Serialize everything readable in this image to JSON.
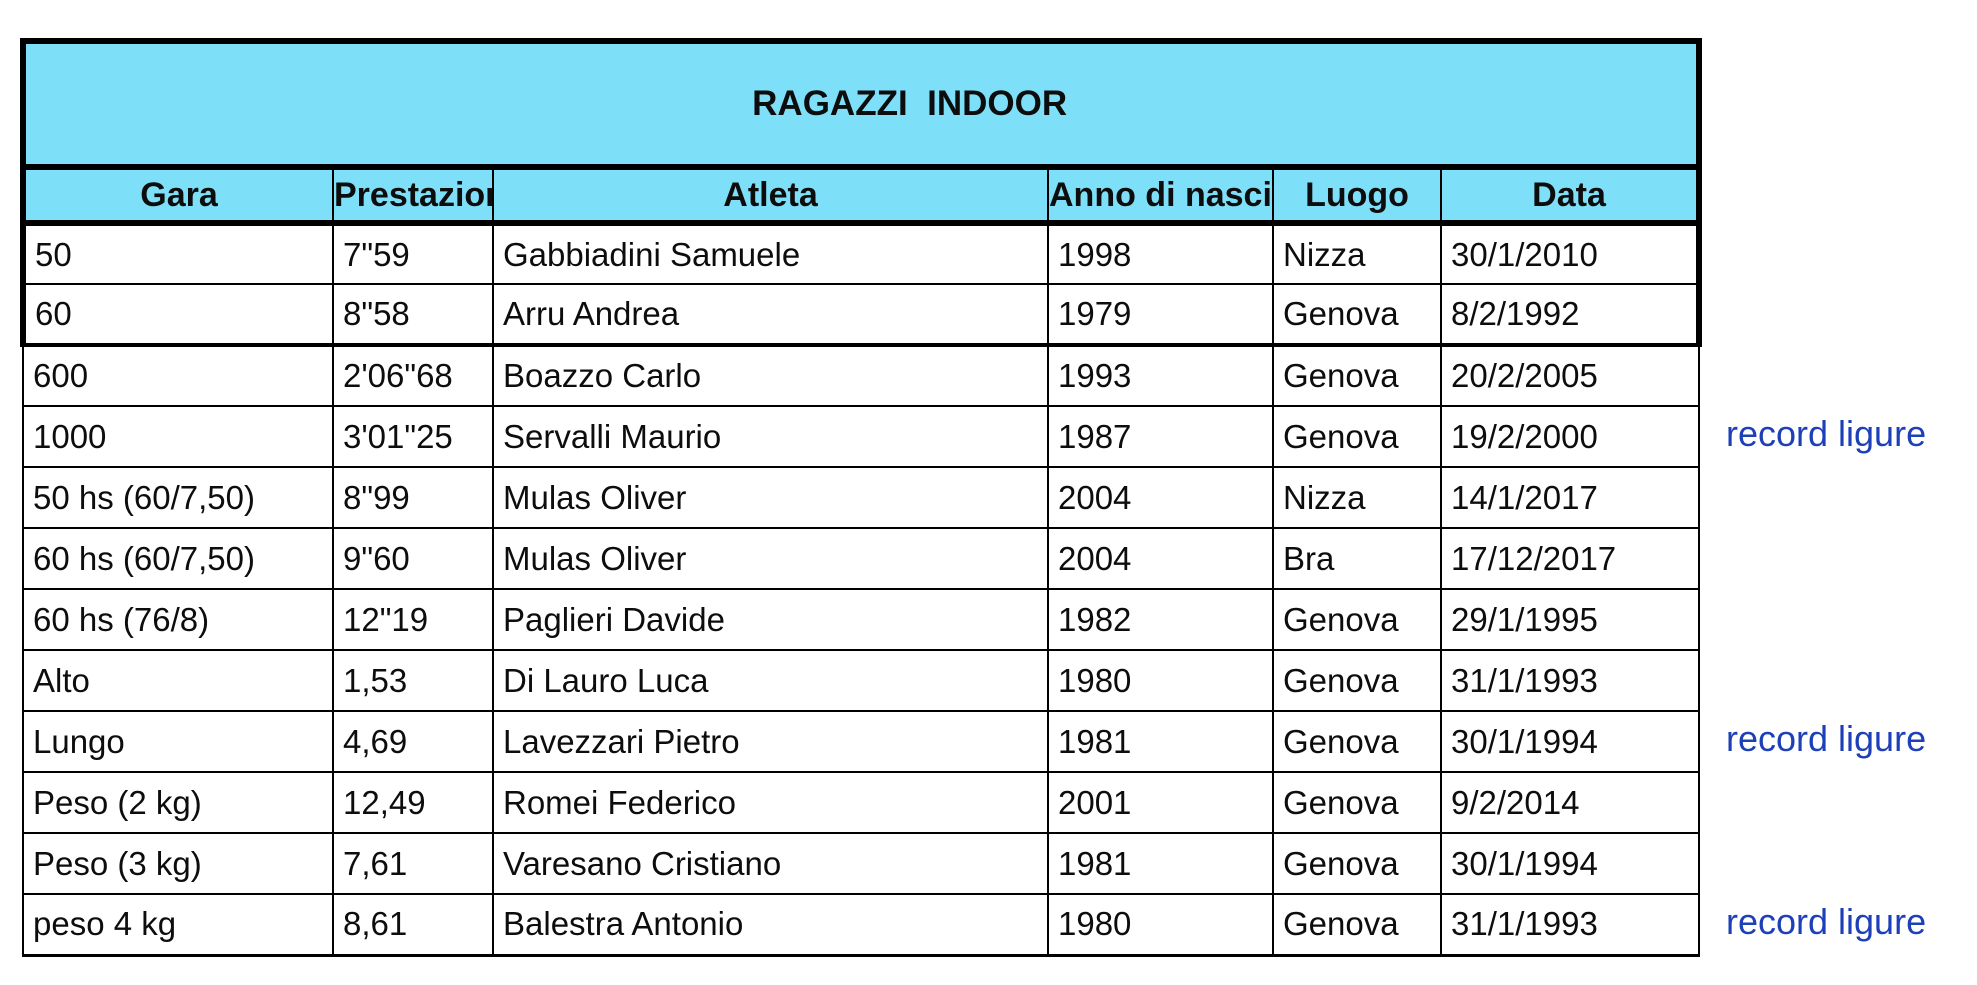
{
  "table": {
    "title": "RAGAZZI  INDOOR",
    "columns": {
      "gara": "Gara",
      "prestazione": "Prestazione",
      "atleta": "Atleta",
      "anno": "Anno di nascita",
      "luogo": "Luogo",
      "data": "Data"
    },
    "rows": [
      {
        "gara": "50",
        "prestazione": "7\"59",
        "atleta": "Gabbiadini Samuele",
        "anno": "1998",
        "luogo": "Nizza",
        "data": "30/1/2010"
      },
      {
        "gara": "60",
        "prestazione": "8\"58",
        "atleta": "Arru Andrea",
        "anno": "1979",
        "luogo": "Genova",
        "data": "8/2/1992"
      },
      {
        "gara": "600",
        "prestazione": "2'06\"68",
        "atleta": "Boazzo Carlo",
        "anno": "1993",
        "luogo": "Genova",
        "data": "20/2/2005"
      },
      {
        "gara": "1000",
        "prestazione": "3'01\"25",
        "atleta": "Servalli Maurio",
        "anno": "1987",
        "luogo": "Genova",
        "data": "19/2/2000"
      },
      {
        "gara": "50 hs (60/7,50)",
        "prestazione": "8\"99",
        "atleta": "Mulas Oliver",
        "anno": "2004",
        "luogo": "Nizza",
        "data": "14/1/2017"
      },
      {
        "gara": "60 hs (60/7,50)",
        "prestazione": "9\"60",
        "atleta": "Mulas Oliver",
        "anno": "2004",
        "luogo": "Bra",
        "data": "17/12/2017"
      },
      {
        "gara": "60 hs (76/8)",
        "prestazione": "12\"19",
        "atleta": "Paglieri Davide",
        "anno": "1982",
        "luogo": "Genova",
        "data": "29/1/1995"
      },
      {
        "gara": "Alto",
        "prestazione": "1,53",
        "atleta": "Di Lauro Luca",
        "anno": "1980",
        "luogo": "Genova",
        "data": "31/1/1993"
      },
      {
        "gara": "Lungo",
        "prestazione": "4,69",
        "atleta": "Lavezzari Pietro",
        "anno": "1981",
        "luogo": "Genova",
        "data": "30/1/1994"
      },
      {
        "gara": "Peso (2 kg)",
        "prestazione": "12,49",
        "atleta": "Romei Federico",
        "anno": "2001",
        "luogo": "Genova",
        "data": "9/2/2014"
      },
      {
        "gara": "Peso (3 kg)",
        "prestazione": "7,61",
        "atleta": "Varesano Cristiano",
        "anno": "1981",
        "luogo": "Genova",
        "data": "30/1/1994"
      },
      {
        "gara": "peso 4 kg",
        "prestazione": "8,61",
        "atleta": "Balestra Antonio",
        "anno": "1980",
        "luogo": "Genova",
        "data": "31/1/1993"
      }
    ],
    "annotations": [
      {
        "row": 4,
        "text": "record ligure"
      },
      {
        "row": 9,
        "text": "record ligure"
      },
      {
        "row": 12,
        "text": "record ligure"
      }
    ],
    "colors": {
      "header_fill": "#7edff9",
      "annotation_blue": "#1d40b8",
      "border": "#000000"
    }
  }
}
